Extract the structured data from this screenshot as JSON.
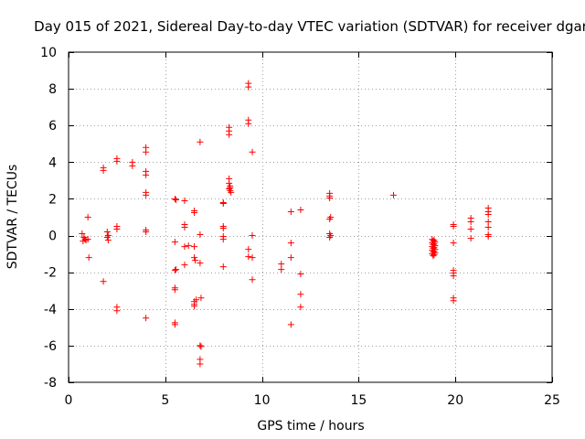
{
  "chart_data": {
    "type": "scatter",
    "title": "Day 015 of 2021, Sidereal Day-to-day VTEC variation (SDTVAR) for receiver dgar",
    "xlabel": "GPS time / hours",
    "ylabel": "SDTVAR / TECUs",
    "xlim": [
      0,
      25
    ],
    "ylim": [
      -8,
      10
    ],
    "xticks": [
      0,
      5,
      10,
      15,
      20,
      25
    ],
    "yticks": [
      -8,
      -6,
      -4,
      -2,
      0,
      2,
      4,
      6,
      8,
      10
    ],
    "xtick_labels": [
      "0",
      "5",
      "10",
      "15",
      "20",
      "25"
    ],
    "ytick_labels": [
      "-8",
      "-6",
      "-4",
      "-2",
      "0",
      "2",
      "4",
      "6",
      "8",
      "10"
    ],
    "grid": true,
    "marker": "+",
    "color": "#ff0000",
    "points": [
      [
        0.7,
        0.1
      ],
      [
        0.75,
        -0.3
      ],
      [
        0.8,
        -0.1
      ],
      [
        0.85,
        -0.2
      ],
      [
        0.9,
        -0.25
      ],
      [
        1.0,
        -0.2
      ],
      [
        1.0,
        1.0
      ],
      [
        1.05,
        -1.2
      ],
      [
        1.8,
        3.7
      ],
      [
        1.8,
        3.55
      ],
      [
        1.8,
        -2.5
      ],
      [
        2.0,
        0.2
      ],
      [
        2.0,
        -0.1
      ],
      [
        2.05,
        0.0
      ],
      [
        2.05,
        -0.25
      ],
      [
        2.5,
        4.2
      ],
      [
        2.5,
        4.05
      ],
      [
        2.5,
        0.5
      ],
      [
        2.5,
        0.35
      ],
      [
        2.5,
        -3.9
      ],
      [
        2.5,
        -4.1
      ],
      [
        3.3,
        4.0
      ],
      [
        3.3,
        3.8
      ],
      [
        4.0,
        4.8
      ],
      [
        4.0,
        4.55
      ],
      [
        4.0,
        3.5
      ],
      [
        4.0,
        3.3
      ],
      [
        4.0,
        2.35
      ],
      [
        4.0,
        2.2
      ],
      [
        4.0,
        0.3
      ],
      [
        4.0,
        0.2
      ],
      [
        4.0,
        -4.5
      ],
      [
        5.5,
        2.0
      ],
      [
        5.55,
        1.95
      ],
      [
        5.5,
        -0.35
      ],
      [
        5.5,
        -1.9
      ],
      [
        5.55,
        -1.85
      ],
      [
        5.5,
        -2.85
      ],
      [
        5.5,
        -2.95
      ],
      [
        5.5,
        -4.75
      ],
      [
        5.5,
        -4.85
      ],
      [
        6.0,
        1.9
      ],
      [
        6.0,
        0.6
      ],
      [
        6.0,
        0.45
      ],
      [
        6.0,
        -0.6
      ],
      [
        6.0,
        -1.6
      ],
      [
        6.2,
        -0.55
      ],
      [
        6.5,
        1.35
      ],
      [
        6.5,
        1.25
      ],
      [
        6.5,
        -0.6
      ],
      [
        6.5,
        -1.2
      ],
      [
        6.55,
        -1.35
      ],
      [
        6.5,
        -3.6
      ],
      [
        6.5,
        -3.75
      ],
      [
        6.5,
        -3.85
      ],
      [
        6.6,
        -3.5
      ],
      [
        6.8,
        5.1
      ],
      [
        6.8,
        0.05
      ],
      [
        6.8,
        -1.5
      ],
      [
        6.85,
        -3.4
      ],
      [
        6.8,
        -6.0
      ],
      [
        6.85,
        -6.05
      ],
      [
        6.8,
        -6.75
      ],
      [
        6.8,
        -7.0
      ],
      [
        8.0,
        1.8
      ],
      [
        8.0,
        1.75
      ],
      [
        8.0,
        0.5
      ],
      [
        8.0,
        0.4
      ],
      [
        8.0,
        -0.05
      ],
      [
        8.0,
        -0.2
      ],
      [
        8.0,
        -1.7
      ],
      [
        8.3,
        5.9
      ],
      [
        8.3,
        5.7
      ],
      [
        8.3,
        5.5
      ],
      [
        8.3,
        3.1
      ],
      [
        8.3,
        2.85
      ],
      [
        8.35,
        2.7
      ],
      [
        8.3,
        2.55
      ],
      [
        8.35,
        2.45
      ],
      [
        8.4,
        2.35
      ],
      [
        8.35,
        2.6
      ],
      [
        9.3,
        8.3
      ],
      [
        9.3,
        8.1
      ],
      [
        9.3,
        6.3
      ],
      [
        9.3,
        6.1
      ],
      [
        9.3,
        -0.75
      ],
      [
        9.3,
        -1.15
      ],
      [
        9.5,
        4.55
      ],
      [
        9.5,
        0.0
      ],
      [
        9.5,
        -1.2
      ],
      [
        9.5,
        -2.4
      ],
      [
        11.0,
        -1.55
      ],
      [
        11.0,
        -1.85
      ],
      [
        11.5,
        1.3
      ],
      [
        11.5,
        -0.4
      ],
      [
        11.5,
        -1.2
      ],
      [
        11.5,
        -4.85
      ],
      [
        12.0,
        1.4
      ],
      [
        12.0,
        -2.1
      ],
      [
        12.0,
        -3.2
      ],
      [
        12.0,
        -3.9
      ],
      [
        13.5,
        2.3
      ],
      [
        13.5,
        2.15
      ],
      [
        13.5,
        2.05
      ],
      [
        13.55,
        1.0
      ],
      [
        13.5,
        0.9
      ],
      [
        13.5,
        0.1
      ],
      [
        13.55,
        0.0
      ],
      [
        13.5,
        -0.1
      ],
      [
        16.8,
        2.2
      ],
      [
        18.8,
        -0.2
      ],
      [
        18.8,
        -0.4
      ],
      [
        18.8,
        -0.6
      ],
      [
        18.8,
        -0.8
      ],
      [
        18.8,
        -1.0
      ],
      [
        18.85,
        -0.3
      ],
      [
        18.85,
        -0.5
      ],
      [
        18.85,
        -0.7
      ],
      [
        18.85,
        -0.9
      ],
      [
        18.85,
        -1.1
      ],
      [
        18.9,
        -0.25
      ],
      [
        18.9,
        -0.45
      ],
      [
        18.9,
        -0.65
      ],
      [
        18.9,
        -0.85
      ],
      [
        18.9,
        -1.05
      ],
      [
        18.95,
        -0.35
      ],
      [
        18.95,
        -0.55
      ],
      [
        18.95,
        -0.75
      ],
      [
        18.95,
        -0.95
      ],
      [
        19.9,
        0.6
      ],
      [
        19.9,
        0.5
      ],
      [
        19.9,
        -0.4
      ],
      [
        19.9,
        -1.9
      ],
      [
        19.9,
        -2.05
      ],
      [
        19.9,
        -2.2
      ],
      [
        19.9,
        -3.4
      ],
      [
        19.9,
        -3.55
      ],
      [
        20.8,
        0.95
      ],
      [
        20.8,
        0.75
      ],
      [
        20.8,
        0.35
      ],
      [
        20.8,
        -0.15
      ],
      [
        21.7,
        1.5
      ],
      [
        21.7,
        1.3
      ],
      [
        21.7,
        1.15
      ],
      [
        21.7,
        0.75
      ],
      [
        21.7,
        0.45
      ],
      [
        21.7,
        0.05
      ],
      [
        21.7,
        -0.05
      ]
    ]
  }
}
